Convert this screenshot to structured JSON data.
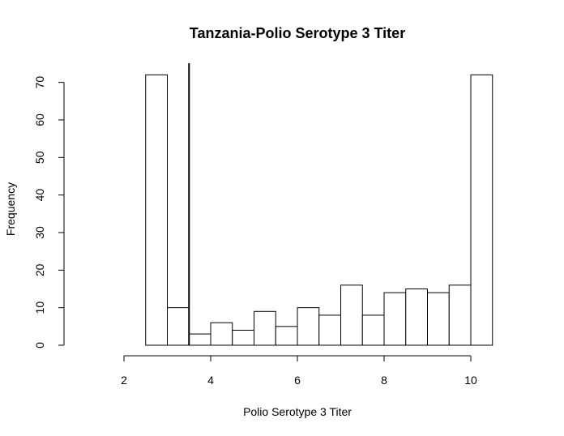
{
  "chart_data": {
    "type": "bar",
    "title": "Tanzania-Polio Serotype 3 Titer",
    "xlabel": "Polio Serotype 3 Titer",
    "ylabel": "Frequency",
    "xlim": [
      2,
      10
    ],
    "ylim": [
      0,
      70
    ],
    "x_ticks": [
      2,
      4,
      6,
      8,
      10
    ],
    "y_ticks": [
      0,
      10,
      20,
      30,
      40,
      50,
      60,
      70
    ],
    "bin_width": 0.5,
    "bins": [
      {
        "x0": 2.5,
        "x1": 3.0,
        "count": 72
      },
      {
        "x0": 3.0,
        "x1": 3.5,
        "count": 10
      },
      {
        "x0": 3.5,
        "x1": 4.0,
        "count": 3
      },
      {
        "x0": 4.0,
        "x1": 4.5,
        "count": 6
      },
      {
        "x0": 4.5,
        "x1": 5.0,
        "count": 4
      },
      {
        "x0": 5.0,
        "x1": 5.5,
        "count": 9
      },
      {
        "x0": 5.5,
        "x1": 6.0,
        "count": 5
      },
      {
        "x0": 6.0,
        "x1": 6.5,
        "count": 10
      },
      {
        "x0": 6.5,
        "x1": 7.0,
        "count": 8
      },
      {
        "x0": 7.0,
        "x1": 7.5,
        "count": 16
      },
      {
        "x0": 7.5,
        "x1": 8.0,
        "count": 8
      },
      {
        "x0": 8.0,
        "x1": 8.5,
        "count": 14
      },
      {
        "x0": 8.5,
        "x1": 9.0,
        "count": 15
      },
      {
        "x0": 9.0,
        "x1": 9.5,
        "count": 14
      },
      {
        "x0": 9.5,
        "x1": 10.0,
        "count": 16
      },
      {
        "x0": 10.0,
        "x1": 10.5,
        "count": 72
      }
    ],
    "reference_line_x": 3.5,
    "grid": false,
    "colors": {
      "bar_fill": "#ffffff",
      "bar_stroke": "#000000",
      "line": "#000000"
    }
  }
}
